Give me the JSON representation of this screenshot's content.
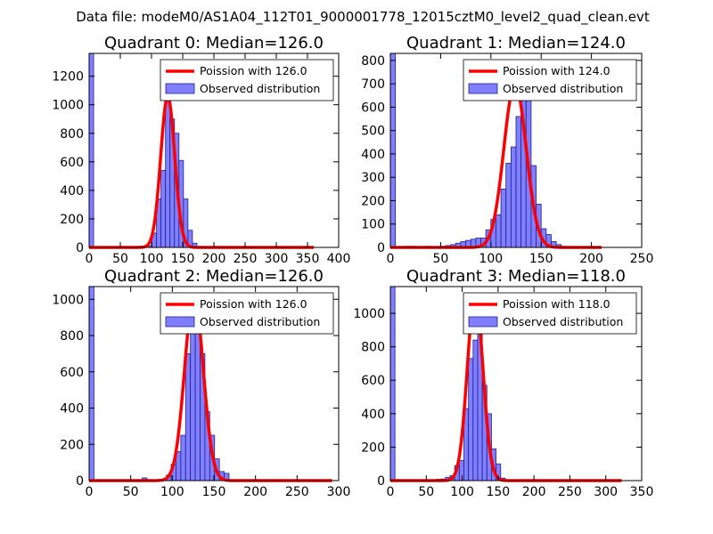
{
  "figure": {
    "suptitle": "Data file: modeM0/AS1A04_112T01_9000001778_12015cztM0_level2_quad_clean.evt"
  },
  "colors": {
    "bar_fill": "#7f7fff",
    "bar_edge": "#1f1f8f",
    "curve": "#ff0000"
  },
  "chart_data": [
    {
      "type": "bar",
      "title": "Quadrant 0: Median=126.0",
      "median": 126.0,
      "xlim": [
        0,
        400
      ],
      "ylim": [
        0,
        1360
      ],
      "xticks": [
        0,
        50,
        100,
        150,
        200,
        250,
        300,
        350,
        400
      ],
      "yticks": [
        0,
        200,
        400,
        600,
        800,
        1000,
        1200
      ],
      "bin_width": 7.2,
      "bins": [
        [
          0,
          1360
        ],
        [
          72,
          5
        ],
        [
          79.2,
          8
        ],
        [
          86.4,
          8
        ],
        [
          93.6,
          12
        ],
        [
          100.8,
          100
        ],
        [
          108,
          340
        ],
        [
          115.2,
          540
        ],
        [
          122.4,
          1080
        ],
        [
          129.6,
          900
        ],
        [
          136.8,
          800
        ],
        [
          144,
          610
        ],
        [
          151.2,
          340
        ],
        [
          158.4,
          120
        ],
        [
          165.6,
          30
        ],
        [
          172.8,
          8
        ],
        [
          180,
          3
        ]
      ],
      "poisson": {
        "label": "Poission with 126.0",
        "peak": 1060,
        "sigma": 11.2,
        "x_end": 360
      },
      "legend": {
        "curve_label": "Poission with 126.0",
        "bars_label": "Observed distribution"
      }
    },
    {
      "type": "bar",
      "title": "Quadrant 1: Median=124.0",
      "median": 124.0,
      "xlim": [
        0,
        250
      ],
      "ylim": [
        0,
        830
      ],
      "xticks": [
        0,
        50,
        100,
        150,
        200,
        250
      ],
      "yticks": [
        0,
        100,
        200,
        300,
        400,
        500,
        600,
        700,
        800
      ],
      "bin_width": 5,
      "bins": [
        [
          0,
          830
        ],
        [
          15,
          5
        ],
        [
          20,
          5
        ],
        [
          35,
          5
        ],
        [
          50,
          5
        ],
        [
          55,
          8
        ],
        [
          60,
          12
        ],
        [
          65,
          18
        ],
        [
          70,
          25
        ],
        [
          75,
          30
        ],
        [
          80,
          35
        ],
        [
          85,
          40
        ],
        [
          90,
          40
        ],
        [
          95,
          75
        ],
        [
          100,
          120
        ],
        [
          105,
          140
        ],
        [
          110,
          250
        ],
        [
          115,
          360
        ],
        [
          120,
          430
        ],
        [
          125,
          560
        ],
        [
          130,
          640
        ],
        [
          135,
          660
        ],
        [
          140,
          350
        ],
        [
          145,
          185
        ],
        [
          150,
          80
        ],
        [
          155,
          55
        ],
        [
          160,
          25
        ],
        [
          165,
          12
        ],
        [
          170,
          5
        ],
        [
          175,
          3
        ]
      ],
      "poisson": {
        "label": "Poission with 124.0",
        "peak": 700,
        "sigma": 11.1,
        "x_end": 210
      },
      "legend": {
        "curve_label": "Poission with 124.0",
        "bars_label": "Observed distribution"
      }
    },
    {
      "type": "bar",
      "title": "Quadrant 2: Median=126.0",
      "median": 126.0,
      "xlim": [
        0,
        300
      ],
      "ylim": [
        0,
        1070
      ],
      "xticks": [
        0,
        50,
        100,
        150,
        200,
        250,
        300
      ],
      "yticks": [
        0,
        200,
        400,
        600,
        800,
        1000
      ],
      "bin_width": 5.8,
      "bins": [
        [
          0,
          1070
        ],
        [
          63.8,
          15
        ],
        [
          92.8,
          30
        ],
        [
          98.6,
          90
        ],
        [
          104.4,
          160
        ],
        [
          110.2,
          250
        ],
        [
          116,
          700
        ],
        [
          121.8,
          850
        ],
        [
          127.6,
          980
        ],
        [
          133.4,
          700
        ],
        [
          139.2,
          380
        ],
        [
          145,
          250
        ],
        [
          150.8,
          120
        ],
        [
          156.6,
          50
        ],
        [
          162.4,
          40
        ],
        [
          168.2,
          5
        ]
      ],
      "poisson": {
        "label": "Poission with 126.0",
        "peak": 1020,
        "sigma": 11.2,
        "x_end": 292
      },
      "legend": {
        "curve_label": "Poission with 126.0",
        "bars_label": "Observed distribution"
      }
    },
    {
      "type": "bar",
      "title": "Quadrant 3: Median=118.0",
      "median": 118.0,
      "xlim": [
        0,
        350
      ],
      "ylim": [
        0,
        1160
      ],
      "xticks": [
        0,
        50,
        100,
        150,
        200,
        250,
        300,
        350
      ],
      "yticks": [
        0,
        200,
        400,
        600,
        800,
        1000
      ],
      "bin_width": 6.4,
      "bins": [
        [
          0,
          1160
        ],
        [
          51.2,
          5
        ],
        [
          57.6,
          5
        ],
        [
          64,
          8
        ],
        [
          70.4,
          10
        ],
        [
          76.8,
          20
        ],
        [
          83.2,
          30
        ],
        [
          89.6,
          90
        ],
        [
          96,
          120
        ],
        [
          102.4,
          430
        ],
        [
          108.8,
          730
        ],
        [
          115.2,
          840
        ],
        [
          121.6,
          950
        ],
        [
          128,
          570
        ],
        [
          134.4,
          400
        ],
        [
          140.8,
          190
        ],
        [
          147.2,
          100
        ],
        [
          153.6,
          15
        ],
        [
          160,
          5
        ]
      ],
      "poisson": {
        "label": "Poission with 118.0",
        "peak": 1110,
        "sigma": 10.9,
        "x_end": 322
      },
      "legend": {
        "curve_label": "Poission with 118.0",
        "bars_label": "Observed distribution"
      }
    }
  ]
}
